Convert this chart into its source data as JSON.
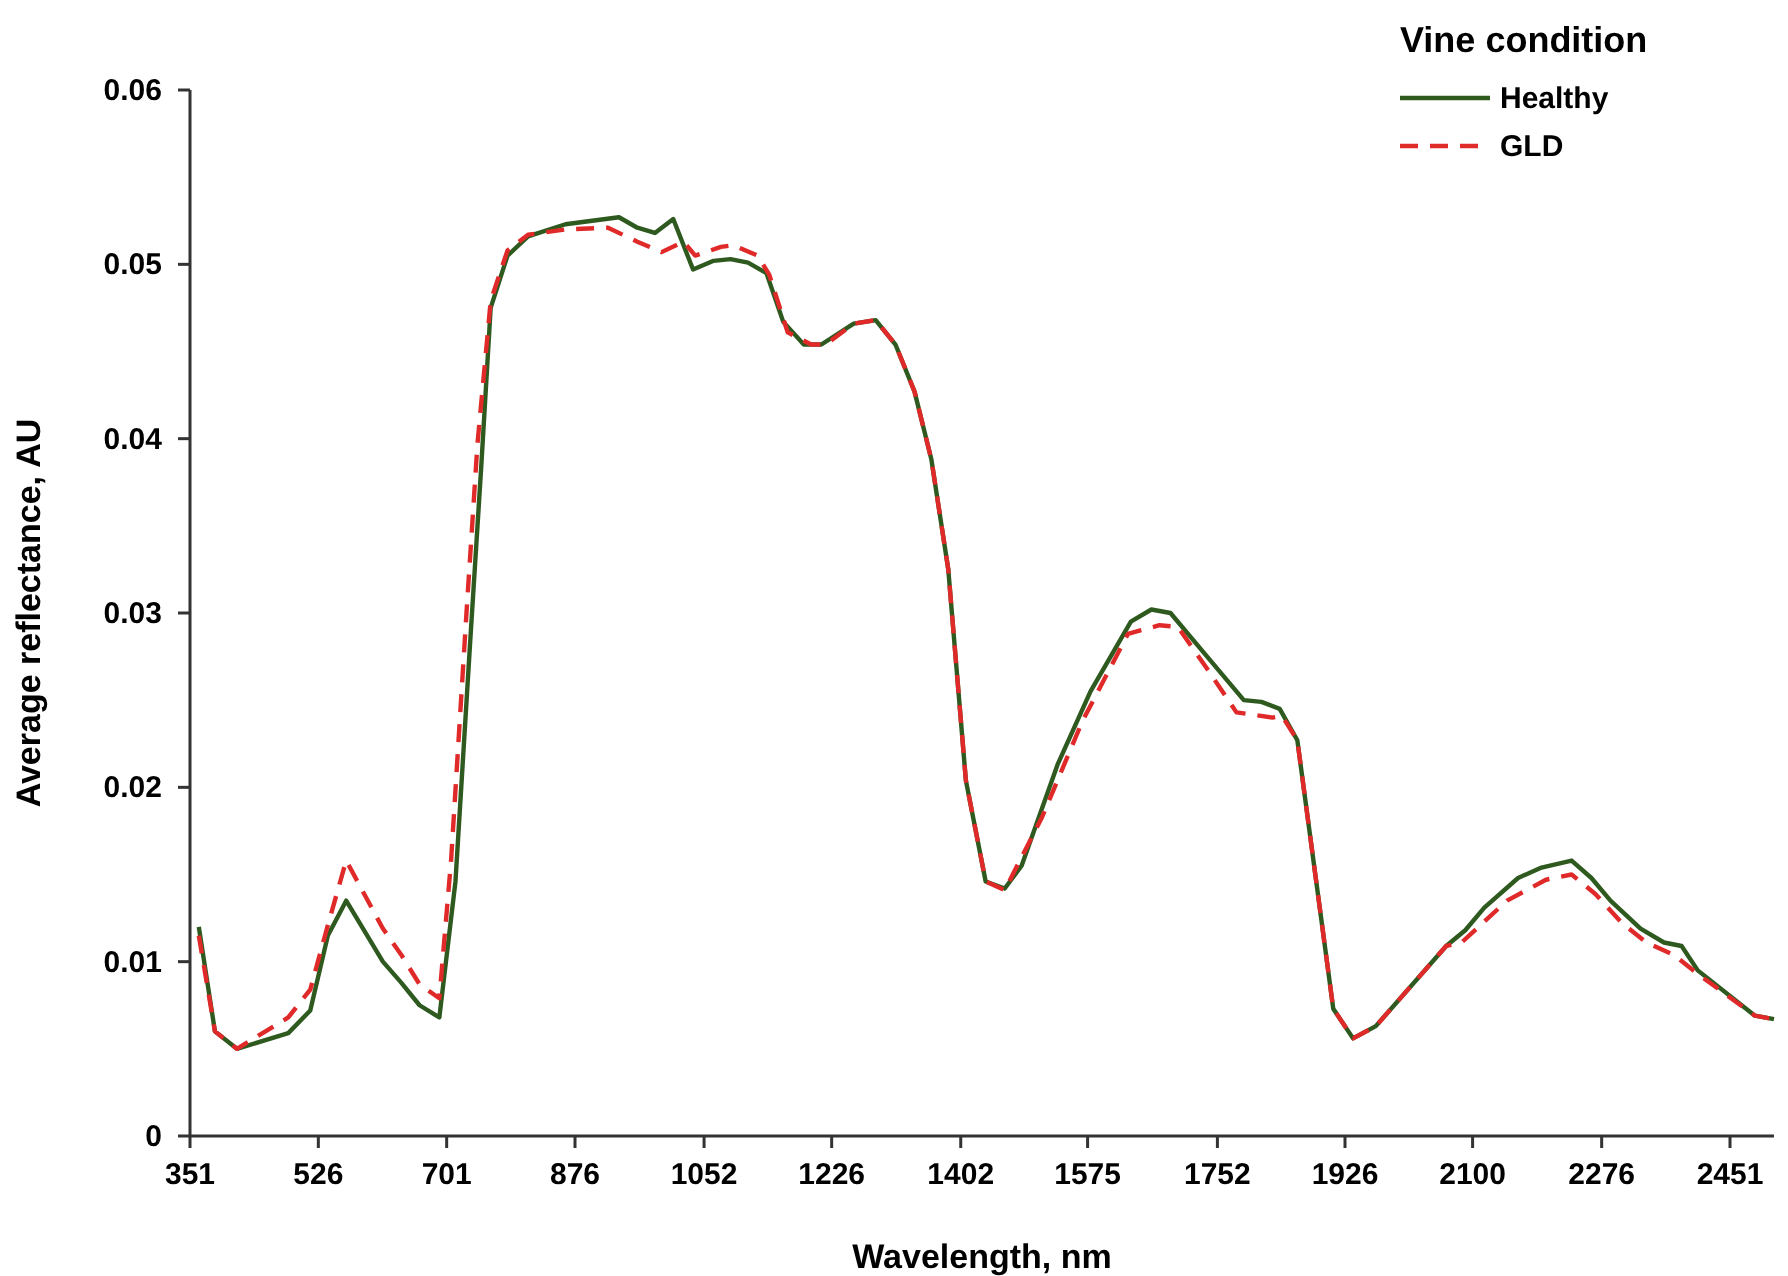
{
  "chart_data": {
    "type": "line",
    "xlabel": "Wavelength, nm",
    "ylabel": "Average reflectance, AU",
    "legend_title": "Vine condition",
    "legend": "top right",
    "grid": false,
    "xlim": [
      351,
      2511
    ],
    "xticks": [
      351,
      526,
      701,
      876,
      1052,
      1226,
      1402,
      1575,
      1752,
      1926,
      2100,
      2276,
      2451
    ],
    "ylim": [
      0,
      0.06
    ],
    "yticks": [
      0,
      0.01,
      0.02,
      0.03,
      0.04,
      0.05,
      0.06
    ],
    "series": [
      {
        "name": "Healthy",
        "color": "#2e5a1f",
        "line_style": "solid",
        "x": [
          363,
          385,
          415,
          485,
          515,
          539,
          564,
          614,
          639,
          664,
          691,
          713,
          733,
          748,
          761,
          784,
          812,
          863,
          936,
          961,
          985,
          1010,
          1037,
          1065,
          1088,
          1112,
          1137,
          1160,
          1188,
          1212,
          1256,
          1286,
          1313,
          1339,
          1362,
          1385,
          1409,
          1436,
          1462,
          1485,
          1534,
          1579,
          1634,
          1662,
          1688,
          1738,
          1788,
          1812,
          1837,
          1861,
          1910,
          1937,
          1968,
          2064,
          2090,
          2116,
          2162,
          2194,
          2235,
          2262,
          2288,
          2329,
          2361,
          2385,
          2407,
          2485,
          2511
        ],
        "values": [
          0.012,
          0.006,
          0.005,
          0.0059,
          0.0072,
          0.0115,
          0.0135,
          0.01,
          0.0088,
          0.0075,
          0.0068,
          0.0146,
          0.0283,
          0.0383,
          0.0475,
          0.0505,
          0.0516,
          0.0523,
          0.0527,
          0.0521,
          0.0518,
          0.0526,
          0.0497,
          0.0502,
          0.0503,
          0.0501,
          0.0495,
          0.0467,
          0.0454,
          0.0454,
          0.0466,
          0.0468,
          0.0454,
          0.0427,
          0.0388,
          0.0325,
          0.0204,
          0.0146,
          0.0142,
          0.0155,
          0.0213,
          0.0255,
          0.0295,
          0.0302,
          0.03,
          0.0275,
          0.025,
          0.0249,
          0.0245,
          0.0227,
          0.0073,
          0.0056,
          0.0063,
          0.0109,
          0.0118,
          0.0131,
          0.0148,
          0.0154,
          0.0158,
          0.0148,
          0.0135,
          0.0119,
          0.0111,
          0.0109,
          0.0095,
          0.0069,
          0.0067
        ]
      },
      {
        "name": "GLD",
        "color": "#e02a2a",
        "line_style": "dashed",
        "x": [
          363,
          385,
          415,
          485,
          515,
          539,
          564,
          614,
          639,
          664,
          691,
          707,
          728,
          743,
          761,
          784,
          812,
          863,
          921,
          961,
          994,
          1024,
          1040,
          1075,
          1092,
          1125,
          1141,
          1166,
          1198,
          1218,
          1256,
          1286,
          1313,
          1339,
          1362,
          1385,
          1409,
          1436,
          1462,
          1513,
          1568,
          1630,
          1673,
          1698,
          1738,
          1778,
          1827,
          1840,
          1861,
          1910,
          1937,
          1968,
          2064,
          2085,
          2147,
          2200,
          2235,
          2267,
          2304,
          2337,
          2374,
          2407,
          2485,
          2511
        ],
        "values": [
          0.0115,
          0.006,
          0.005,
          0.0068,
          0.0084,
          0.0121,
          0.0158,
          0.0119,
          0.0104,
          0.0087,
          0.0079,
          0.0158,
          0.03,
          0.0397,
          0.0479,
          0.0508,
          0.0517,
          0.052,
          0.0521,
          0.0513,
          0.0507,
          0.0513,
          0.0505,
          0.051,
          0.0511,
          0.0505,
          0.0494,
          0.0461,
          0.0454,
          0.0454,
          0.0466,
          0.0468,
          0.0454,
          0.0427,
          0.0388,
          0.0325,
          0.0204,
          0.0146,
          0.0141,
          0.0183,
          0.0238,
          0.0288,
          0.0293,
          0.0292,
          0.0268,
          0.0243,
          0.024,
          0.0241,
          0.0227,
          0.0073,
          0.0056,
          0.0063,
          0.0109,
          0.0111,
          0.0135,
          0.0147,
          0.015,
          0.0139,
          0.0122,
          0.0111,
          0.0104,
          0.0093,
          0.0069,
          0.0067
        ]
      }
    ]
  }
}
